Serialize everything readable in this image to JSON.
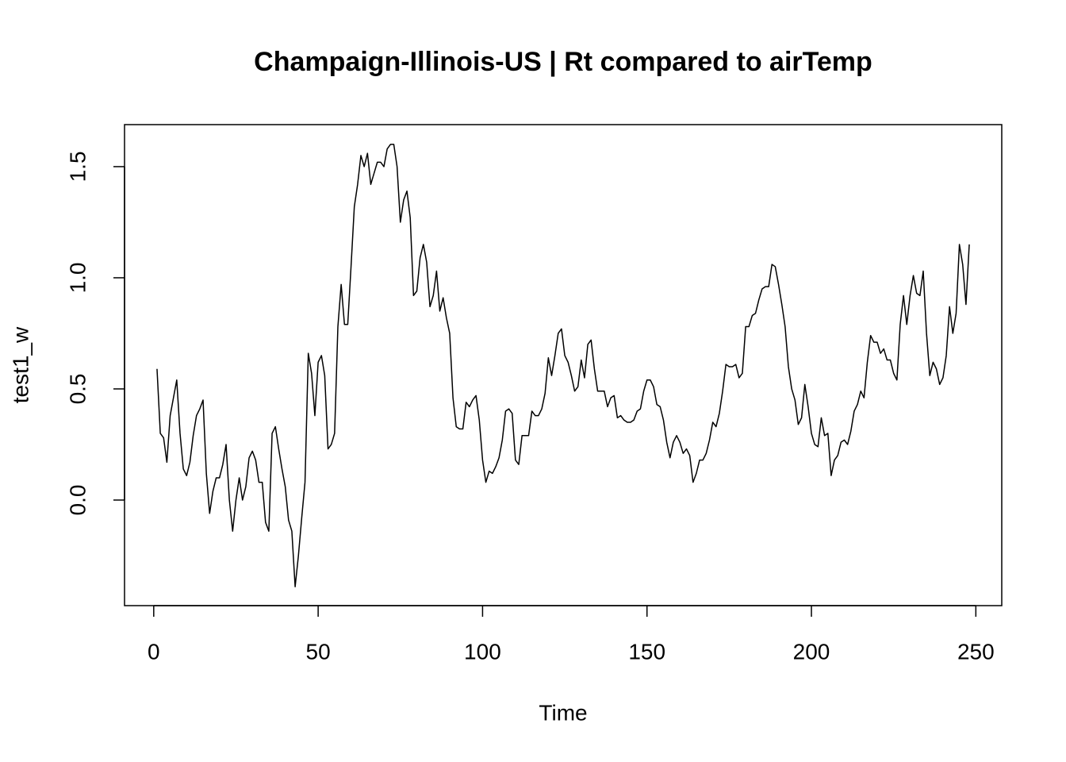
{
  "chart_data": {
    "type": "line",
    "title": "Champaign-Illinois-US | Rt compared to airTemp",
    "x_label": "Time",
    "y_label": "test1_w",
    "x": [
      1,
      2,
      3,
      4,
      5,
      6,
      7,
      8,
      9,
      10,
      11,
      12,
      13,
      14,
      15,
      16,
      17,
      18,
      19,
      20,
      21,
      22,
      23,
      24,
      25,
      26,
      27,
      28,
      29,
      30,
      31,
      32,
      33,
      34,
      35,
      36,
      37,
      38,
      39,
      40,
      41,
      42,
      43,
      44,
      45,
      46,
      47,
      48,
      49,
      50,
      51,
      52,
      53,
      54,
      55,
      56,
      57,
      58,
      59,
      60,
      61,
      62,
      63,
      64,
      65,
      66,
      67,
      68,
      69,
      70,
      71,
      72,
      73,
      74,
      75,
      76,
      77,
      78,
      79,
      80,
      81,
      82,
      83,
      84,
      85,
      86,
      87,
      88,
      89,
      90,
      91,
      92,
      93,
      94,
      95,
      96,
      97,
      98,
      99,
      100,
      101,
      102,
      103,
      104,
      105,
      106,
      107,
      108,
      109,
      110,
      111,
      112,
      113,
      114,
      115,
      116,
      117,
      118,
      119,
      120,
      121,
      122,
      123,
      124,
      125,
      126,
      127,
      128,
      129,
      130,
      131,
      132,
      133,
      134,
      135,
      136,
      137,
      138,
      139,
      140,
      141,
      142,
      143,
      144,
      145,
      146,
      147,
      148,
      149,
      150,
      151,
      152,
      153,
      154,
      155,
      156,
      157,
      158,
      159,
      160,
      161,
      162,
      163,
      164,
      165,
      166,
      167,
      168,
      169,
      170,
      171,
      172,
      173,
      174,
      175,
      176,
      177,
      178,
      179,
      180,
      181,
      182,
      183,
      184,
      185,
      186,
      187,
      188,
      189,
      190,
      191,
      192,
      193,
      194,
      195,
      196,
      197,
      198,
      199,
      200,
      201,
      202,
      203,
      204,
      205,
      206,
      207,
      208,
      209,
      210,
      211,
      212,
      213,
      214,
      215,
      216,
      217,
      218,
      219,
      220,
      221,
      222,
      223,
      224,
      225,
      226,
      227,
      228,
      229,
      230,
      231,
      232,
      233,
      234,
      235,
      236,
      237,
      238,
      239,
      240,
      241,
      242,
      243,
      244,
      245,
      246,
      247,
      248
    ],
    "series": [
      {
        "name": "test1_w",
        "color": "#000000",
        "values": [
          0.59,
          0.3,
          0.28,
          0.17,
          0.38,
          0.46,
          0.54,
          0.3,
          0.14,
          0.11,
          0.17,
          0.29,
          0.38,
          0.41,
          0.45,
          0.12,
          -0.06,
          0.04,
          0.1,
          0.1,
          0.16,
          0.25,
          0.0,
          -0.14,
          0.0,
          0.1,
          0.0,
          0.06,
          0.19,
          0.22,
          0.18,
          0.08,
          0.08,
          -0.1,
          -0.14,
          0.3,
          0.33,
          0.23,
          0.14,
          0.06,
          -0.09,
          -0.14,
          -0.39,
          -0.25,
          -0.08,
          0.08,
          0.66,
          0.57,
          0.38,
          0.62,
          0.65,
          0.56,
          0.23,
          0.25,
          0.3,
          0.78,
          0.97,
          0.79,
          0.79,
          1.05,
          1.32,
          1.42,
          1.55,
          1.5,
          1.56,
          1.42,
          1.47,
          1.52,
          1.52,
          1.5,
          1.58,
          1.6,
          1.6,
          1.5,
          1.25,
          1.35,
          1.39,
          1.27,
          0.92,
          0.94,
          1.09,
          1.15,
          1.07,
          0.87,
          0.92,
          1.03,
          0.85,
          0.91,
          0.82,
          0.75,
          0.46,
          0.33,
          0.32,
          0.32,
          0.44,
          0.42,
          0.45,
          0.47,
          0.36,
          0.18,
          0.08,
          0.13,
          0.12,
          0.15,
          0.19,
          0.27,
          0.4,
          0.41,
          0.39,
          0.18,
          0.16,
          0.29,
          0.29,
          0.29,
          0.4,
          0.38,
          0.38,
          0.41,
          0.48,
          0.64,
          0.56,
          0.65,
          0.75,
          0.77,
          0.65,
          0.62,
          0.56,
          0.49,
          0.51,
          0.63,
          0.55,
          0.7,
          0.72,
          0.59,
          0.49,
          0.49,
          0.49,
          0.42,
          0.46,
          0.47,
          0.37,
          0.38,
          0.36,
          0.35,
          0.35,
          0.36,
          0.4,
          0.41,
          0.49,
          0.54,
          0.54,
          0.51,
          0.43,
          0.42,
          0.36,
          0.26,
          0.19,
          0.26,
          0.29,
          0.26,
          0.21,
          0.23,
          0.2,
          0.08,
          0.12,
          0.18,
          0.18,
          0.21,
          0.27,
          0.35,
          0.33,
          0.39,
          0.49,
          0.61,
          0.6,
          0.6,
          0.61,
          0.55,
          0.57,
          0.78,
          0.78,
          0.83,
          0.84,
          0.9,
          0.95,
          0.96,
          0.96,
          1.06,
          1.05,
          0.97,
          0.88,
          0.78,
          0.6,
          0.5,
          0.45,
          0.34,
          0.37,
          0.52,
          0.42,
          0.3,
          0.25,
          0.24,
          0.37,
          0.29,
          0.3,
          0.11,
          0.18,
          0.2,
          0.26,
          0.27,
          0.25,
          0.31,
          0.4,
          0.43,
          0.49,
          0.46,
          0.62,
          0.74,
          0.71,
          0.71,
          0.66,
          0.68,
          0.63,
          0.63,
          0.57,
          0.54,
          0.79,
          0.92,
          0.79,
          0.92,
          1.01,
          0.93,
          0.92,
          1.03,
          0.75,
          0.56,
          0.62,
          0.59,
          0.52,
          0.55,
          0.65,
          0.87,
          0.75,
          0.84,
          1.15,
          1.06,
          0.88,
          1.15
        ]
      }
    ],
    "xlim": [
      -8.88,
      257.88
    ],
    "xticks": [
      0,
      50,
      100,
      150,
      200,
      250
    ],
    "ylim": [
      -0.475,
      1.689
    ],
    "yticks": [
      {
        "value": 0,
        "label": "0.0"
      },
      0.5,
      {
        "value": 1,
        "label": "1.0"
      },
      1.5
    ],
    "grid": false
  }
}
